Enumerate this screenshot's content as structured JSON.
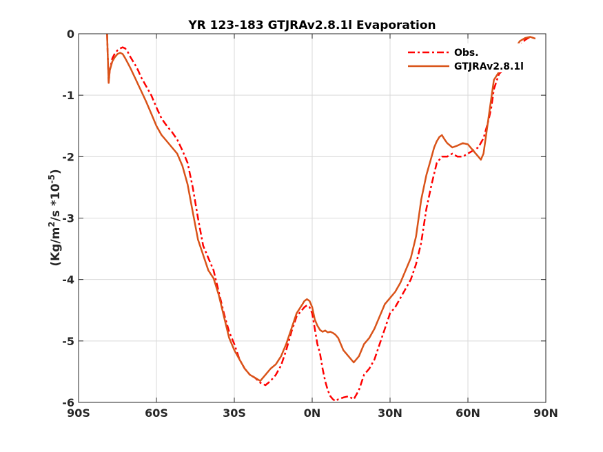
{
  "chart_data": {
    "type": "line",
    "title": "YR 123-183 GTJRAv2.8.1l Evaporation",
    "ylabel_main": "(Kg/m",
    "ylabel_sup1": "2",
    "ylabel_mid": "/s *10",
    "ylabel_sup2": "-5",
    "ylabel_end": ")",
    "xlabel": "",
    "xlim": [
      -90,
      90
    ],
    "ylim": [
      -6,
      0
    ],
    "x_ticks": [
      {
        "value": -90,
        "label": "90S"
      },
      {
        "value": -60,
        "label": "60S"
      },
      {
        "value": -30,
        "label": "30S"
      },
      {
        "value": 0,
        "label": "0N"
      },
      {
        "value": 30,
        "label": "30N"
      },
      {
        "value": 60,
        "label": "60N"
      },
      {
        "value": 90,
        "label": "90N"
      }
    ],
    "y_ticks": [
      {
        "value": 0,
        "label": "0"
      },
      {
        "value": -1,
        "label": "-1"
      },
      {
        "value": -2,
        "label": "-2"
      },
      {
        "value": -3,
        "label": "-3"
      },
      {
        "value": -4,
        "label": "-4"
      },
      {
        "value": -5,
        "label": "-5"
      },
      {
        "value": -6,
        "label": "-6"
      }
    ],
    "grid": true,
    "legend_position": "top-right",
    "series": [
      {
        "name": "Obs.",
        "color": "#ff0000",
        "dash": "dash-dot",
        "x": [
          -79,
          -78.8,
          -78.4,
          -78,
          -77,
          -76,
          -75,
          -74,
          -73,
          -72,
          -71,
          -70,
          -69,
          -68,
          -67,
          -66,
          -64,
          -62,
          -60,
          -58,
          -56,
          -54,
          -52,
          -50,
          -48,
          -46,
          -44,
          -42,
          -40,
          -38,
          -36,
          -34,
          -32,
          -30,
          -28,
          -26,
          -24,
          -22,
          -20,
          -18,
          -16,
          -14,
          -12,
          -10,
          -8,
          -6,
          -4,
          -3,
          -2,
          -1,
          0,
          1,
          2,
          3,
          4,
          5,
          6,
          7,
          8,
          9,
          10,
          12,
          14,
          16,
          18,
          20,
          22,
          24,
          26,
          28,
          30,
          32,
          34,
          36,
          38,
          40,
          42,
          44,
          46,
          48,
          50,
          52,
          54,
          56,
          58,
          60,
          62,
          64,
          66,
          67,
          68,
          69,
          70,
          72,
          74,
          76,
          78,
          80,
          82,
          84,
          86
        ],
        "y": [
          0,
          -0.3,
          -0.8,
          -0.6,
          -0.4,
          -0.32,
          -0.27,
          -0.24,
          -0.22,
          -0.24,
          -0.3,
          -0.38,
          -0.45,
          -0.52,
          -0.6,
          -0.7,
          -0.85,
          -1.0,
          -1.2,
          -1.38,
          -1.5,
          -1.6,
          -1.72,
          -1.9,
          -2.1,
          -2.5,
          -3.0,
          -3.45,
          -3.65,
          -3.85,
          -4.2,
          -4.55,
          -4.85,
          -5.05,
          -5.3,
          -5.45,
          -5.55,
          -5.6,
          -5.68,
          -5.72,
          -5.65,
          -5.55,
          -5.4,
          -5.15,
          -4.85,
          -4.6,
          -4.5,
          -4.45,
          -4.42,
          -4.45,
          -4.55,
          -4.8,
          -5.05,
          -5.2,
          -5.45,
          -5.65,
          -5.8,
          -5.9,
          -5.95,
          -5.98,
          -5.95,
          -5.92,
          -5.9,
          -5.95,
          -5.8,
          -5.55,
          -5.45,
          -5.3,
          -5.05,
          -4.8,
          -4.55,
          -4.45,
          -4.3,
          -4.15,
          -4.0,
          -3.75,
          -3.4,
          -2.85,
          -2.45,
          -2.1,
          -2.0,
          -2.0,
          -1.95,
          -2.0,
          -2.0,
          -1.95,
          -1.9,
          -1.85,
          -1.7,
          -1.55,
          -1.4,
          -1.2,
          -0.9,
          -0.65,
          -0.58,
          -0.5,
          -0.35,
          -0.2,
          -0.1,
          -0.05,
          -0.08
        ]
      },
      {
        "name": "GTJRAv2.8.1l",
        "color": "#d95319",
        "dash": "solid",
        "x": [
          -79,
          -78.8,
          -78.4,
          -78,
          -77,
          -76,
          -75,
          -74,
          -73,
          -72,
          -71,
          -70,
          -69,
          -68,
          -67,
          -66,
          -64,
          -62,
          -60,
          -58,
          -56,
          -54,
          -52,
          -50,
          -48,
          -46,
          -44,
          -42,
          -40,
          -38,
          -36,
          -34,
          -32,
          -30,
          -28,
          -26,
          -24,
          -22,
          -20,
          -18,
          -16,
          -14,
          -12,
          -10,
          -8,
          -6,
          -4,
          -3,
          -2,
          -1,
          0,
          1,
          2,
          3,
          4,
          5,
          6,
          7,
          8,
          9,
          10,
          12,
          14,
          16,
          18,
          20,
          22,
          24,
          26,
          28,
          30,
          32,
          34,
          36,
          38,
          40,
          42,
          44,
          46,
          47,
          48,
          49,
          50,
          51,
          52,
          54,
          56,
          58,
          60,
          62,
          64,
          65,
          66,
          67,
          68,
          69,
          70,
          72,
          74,
          76,
          78,
          80,
          82,
          84,
          86
        ],
        "y": [
          0,
          -0.3,
          -0.8,
          -0.6,
          -0.45,
          -0.38,
          -0.33,
          -0.31,
          -0.33,
          -0.4,
          -0.48,
          -0.56,
          -0.65,
          -0.74,
          -0.83,
          -0.92,
          -1.1,
          -1.3,
          -1.5,
          -1.65,
          -1.75,
          -1.85,
          -1.95,
          -2.15,
          -2.45,
          -2.9,
          -3.35,
          -3.6,
          -3.85,
          -3.98,
          -4.25,
          -4.6,
          -4.95,
          -5.15,
          -5.3,
          -5.45,
          -5.55,
          -5.6,
          -5.65,
          -5.55,
          -5.45,
          -5.38,
          -5.25,
          -5.05,
          -4.8,
          -4.55,
          -4.42,
          -4.35,
          -4.32,
          -4.35,
          -4.45,
          -4.65,
          -4.75,
          -4.82,
          -4.85,
          -4.83,
          -4.86,
          -4.85,
          -4.87,
          -4.9,
          -4.95,
          -5.15,
          -5.25,
          -5.35,
          -5.25,
          -5.05,
          -4.95,
          -4.8,
          -4.6,
          -4.4,
          -4.3,
          -4.2,
          -4.05,
          -3.85,
          -3.65,
          -3.3,
          -2.7,
          -2.3,
          -2.0,
          -1.85,
          -1.75,
          -1.68,
          -1.65,
          -1.72,
          -1.78,
          -1.85,
          -1.82,
          -1.78,
          -1.8,
          -1.9,
          -2.0,
          -2.05,
          -1.95,
          -1.65,
          -1.35,
          -1.05,
          -0.75,
          -0.62,
          -0.55,
          -0.42,
          -0.25,
          -0.12,
          -0.07,
          -0.05,
          -0.08
        ]
      }
    ]
  },
  "legend": {
    "obs_label": "Obs.",
    "model_label": "GTJRAv2.8.1l"
  }
}
